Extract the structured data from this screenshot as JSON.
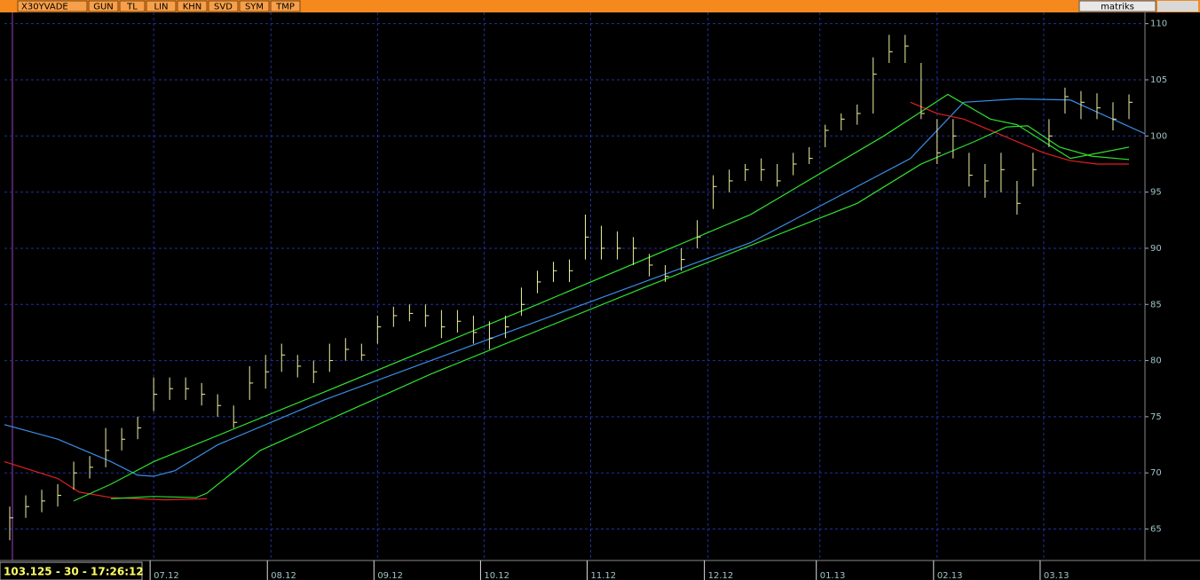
{
  "toolbar": {
    "symbol": "X30YVADE",
    "buttons": [
      "GUN",
      "TL",
      "LIN",
      "KHN",
      "SVD",
      "SYM",
      "TMP"
    ],
    "brand": "matriks"
  },
  "status": "103.125 - 30 - 17:26:12",
  "chart_data": {
    "type": "ohlc",
    "xlim": [
      0,
      214
    ],
    "ylim": [
      62.2,
      111
    ],
    "yticks": [
      65,
      70,
      75,
      80,
      85,
      90,
      95,
      100,
      105,
      110
    ],
    "xticks": [
      {
        "value": 28,
        "label": "07.12"
      },
      {
        "value": 50,
        "label": "08.12"
      },
      {
        "value": 70,
        "label": "09.12"
      },
      {
        "value": 90,
        "label": "10.12"
      },
      {
        "value": 110,
        "label": "11.12"
      },
      {
        "value": 132,
        "label": "12.12"
      },
      {
        "value": 153,
        "label": "01.13"
      },
      {
        "value": 175,
        "label": "02.13"
      },
      {
        "value": 195,
        "label": "03.13"
      }
    ],
    "grid": true,
    "bar_color": "#f0f0a0",
    "bars": {
      "x": [
        1,
        4,
        7,
        10,
        13,
        16,
        19,
        22,
        25,
        28,
        31,
        34,
        37,
        40,
        43,
        46,
        49,
        52,
        55,
        58,
        61,
        64,
        67,
        70,
        73,
        76,
        79,
        82,
        85,
        88,
        91,
        94,
        97,
        100,
        103,
        106,
        109,
        112,
        115,
        118,
        121,
        124,
        127,
        130,
        133,
        136,
        139,
        142,
        145,
        148,
        151,
        154,
        157,
        160,
        163,
        166,
        169,
        172,
        175,
        178,
        181,
        184,
        187,
        190,
        193,
        196,
        199,
        202,
        205,
        208,
        211
      ],
      "high": [
        67,
        68,
        68.5,
        69,
        71,
        71.5,
        74,
        74,
        75,
        78.5,
        78.5,
        78.5,
        78,
        77,
        76,
        79.5,
        80.5,
        81.5,
        80.5,
        80,
        81.5,
        82,
        81.5,
        84,
        84.8,
        85,
        85,
        84.5,
        84.5,
        84,
        83.5,
        84,
        86.5,
        88,
        88.8,
        89,
        93,
        92,
        91.5,
        91,
        89.5,
        88.5,
        90,
        92.5,
        96.5,
        97,
        97.5,
        98,
        97.5,
        98.5,
        99,
        101,
        102,
        102.8,
        107,
        109,
        109,
        106.5,
        101.5,
        101.5,
        98.5,
        97.5,
        98.5,
        96,
        98.5,
        101.5,
        104.3,
        104,
        103.8,
        103,
        103.7
      ],
      "low": [
        64,
        66,
        66.5,
        67,
        68.5,
        69.5,
        70.5,
        72,
        73,
        75.5,
        76.5,
        76.5,
        76,
        75,
        74,
        76.5,
        77.5,
        79,
        78.5,
        78,
        79,
        80,
        80,
        81.5,
        83,
        83.5,
        83,
        82,
        82.5,
        81.5,
        81,
        82,
        84,
        86,
        87,
        87,
        89,
        89,
        89,
        88.5,
        87.5,
        87,
        88,
        90,
        93.5,
        95,
        96,
        96,
        95.5,
        96.5,
        97.5,
        99,
        100.5,
        101,
        102,
        106.5,
        106.5,
        101.5,
        97.5,
        98,
        95.5,
        94.5,
        95,
        93,
        95.5,
        99,
        102,
        101.5,
        101.5,
        100.5,
        101.5
      ],
      "close": [
        66,
        67,
        67.5,
        68,
        70,
        70.5,
        72,
        73,
        74,
        77,
        77.5,
        77.5,
        77,
        76,
        74.5,
        78,
        79,
        80.5,
        79.5,
        79,
        80,
        81,
        80.5,
        83,
        84,
        84.2,
        84,
        83,
        83.5,
        82.5,
        82,
        83,
        85,
        87,
        88,
        88,
        91,
        90,
        90,
        90,
        88.5,
        87.5,
        89,
        91,
        95.5,
        96,
        97,
        97,
        96,
        97.5,
        98,
        100.5,
        101.5,
        102,
        105.5,
        107.5,
        108,
        102,
        98.5,
        100,
        96.5,
        96,
        97,
        94,
        97,
        100,
        103.5,
        103,
        102.5,
        101.5,
        103
      ]
    },
    "lines": [
      {
        "color": "#3a8ee8",
        "x": [
          0,
          10,
          20,
          25,
          28,
          32,
          40,
          60,
          100,
          140,
          170,
          180,
          190,
          200,
          214
        ],
        "values": [
          74.3,
          73,
          71,
          69.8,
          69.7,
          70.2,
          72.5,
          76.5,
          83.5,
          90.5,
          98,
          103,
          103.3,
          103.2,
          100.2
        ]
      },
      {
        "color": "#e02020",
        "x": [
          0,
          10,
          14,
          20,
          30,
          38,
          100,
          170,
          175,
          180,
          185,
          190,
          195,
          200,
          205,
          211
        ],
        "values": [
          71,
          69.5,
          68.3,
          67.8,
          67.6,
          67.7,
          null,
          103,
          102,
          101.5,
          100.5,
          99.5,
          98.5,
          97.8,
          97.5,
          97.5
        ]
      },
      {
        "color": "#30e030",
        "x": [
          13,
          20,
          28,
          60,
          100,
          140,
          165,
          177,
          185,
          190,
          195,
          200,
          211
        ],
        "values": [
          67.5,
          69,
          71,
          77.2,
          85,
          93,
          100,
          103.7,
          101.5,
          101,
          99.5,
          98,
          99
        ]
      },
      {
        "color": "#30e030",
        "x": [
          20,
          28,
          36,
          38,
          48,
          80,
          120,
          160,
          172,
          182,
          188,
          192,
          198,
          204,
          211
        ],
        "values": [
          67.7,
          67.9,
          67.8,
          68.2,
          72,
          78.8,
          86.5,
          94,
          97.5,
          99.5,
          100.8,
          100.9,
          99,
          98.2,
          97.9
        ]
      }
    ]
  }
}
